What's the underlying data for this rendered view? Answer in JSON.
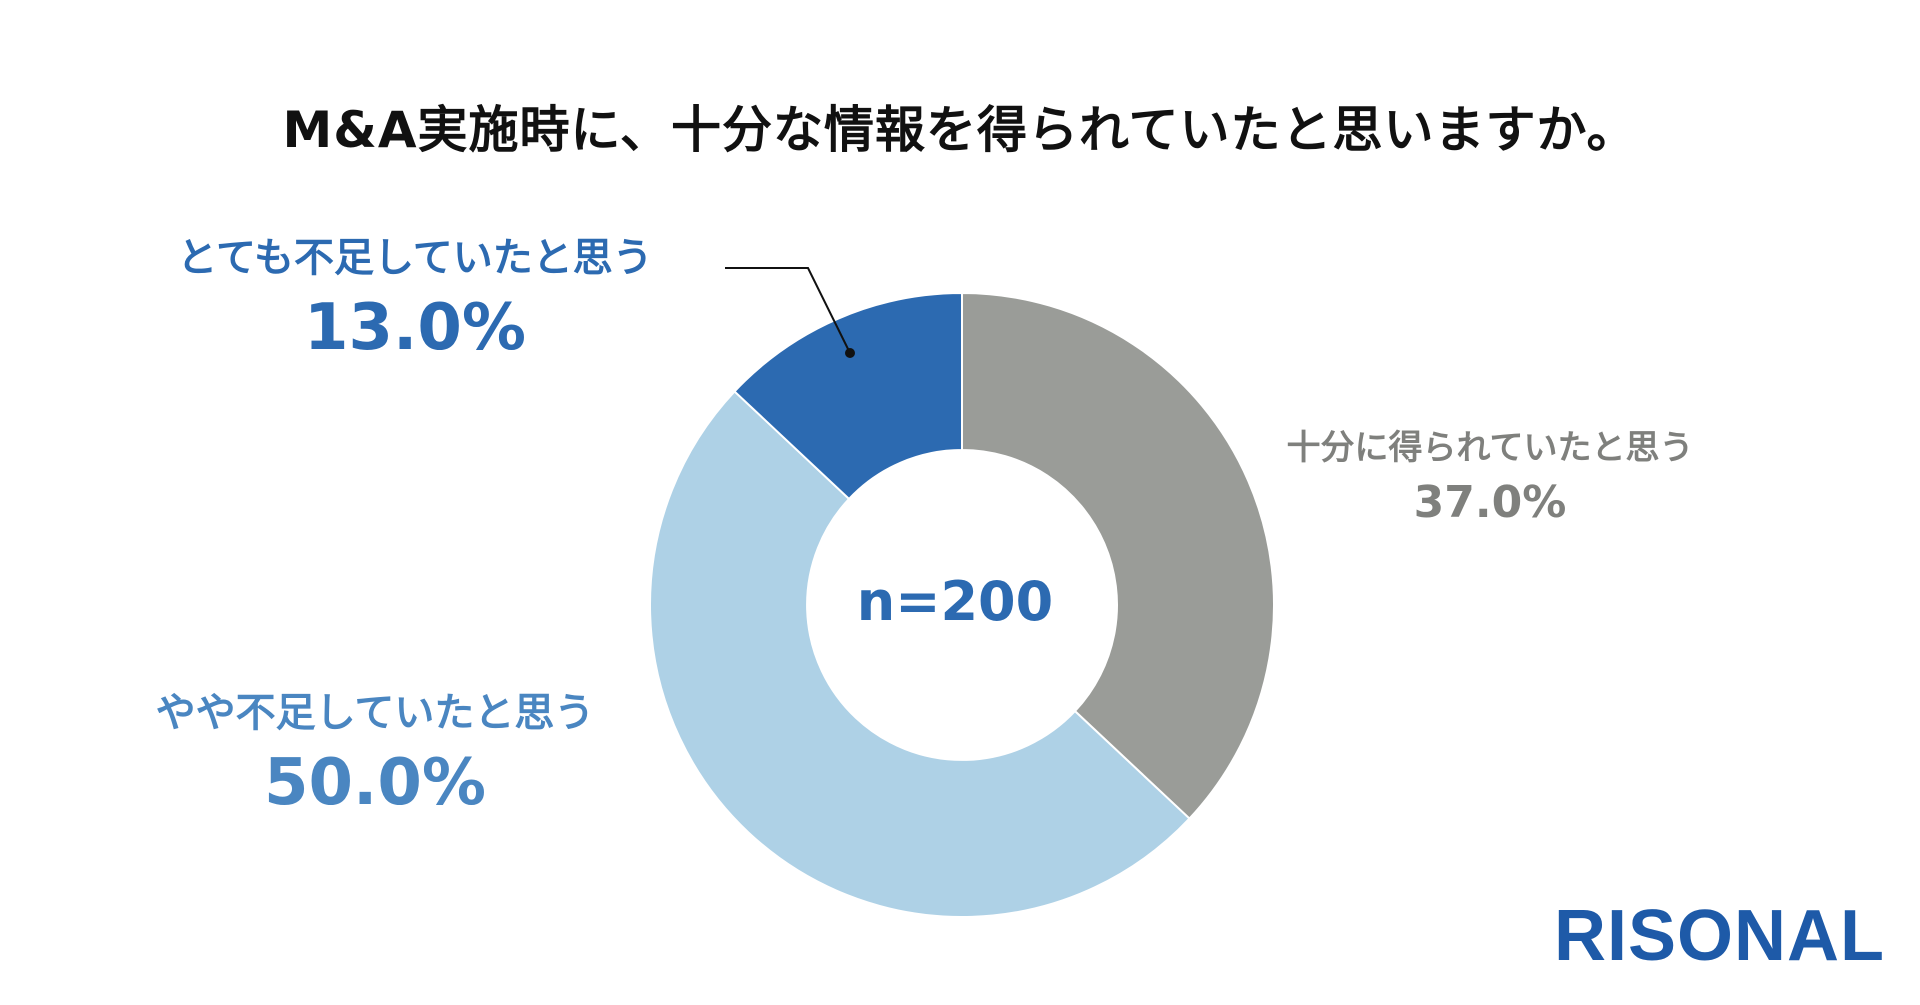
{
  "title": "M&A実施時に、十分な情報を得られていたと思いますか。",
  "chart_data": {
    "type": "pie",
    "donut": true,
    "sample_size": "n=200",
    "slices": [
      {
        "label": "十分に得られていたと思う",
        "value": 37.0,
        "display": "37.0%",
        "color": "#9a9c98"
      },
      {
        "label": "やや不足していたと思う",
        "value": 50.0,
        "display": "50.0%",
        "color": "#aed1e6"
      },
      {
        "label": "とても不足していたと思う",
        "value": 13.0,
        "display": "13.0%",
        "color": "#2c6ab1"
      }
    ]
  },
  "logo": "RISONAL"
}
